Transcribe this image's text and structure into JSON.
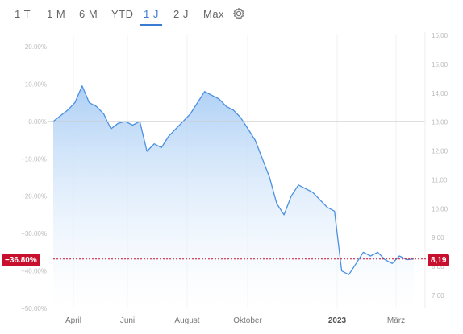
{
  "tabs": [
    {
      "label": "1 T",
      "active": false
    },
    {
      "label": "1 M",
      "active": false
    },
    {
      "label": "6 M",
      "active": false
    },
    {
      "label": "YTD",
      "active": false
    },
    {
      "label": "1 J",
      "active": true
    },
    {
      "label": "2 J",
      "active": false
    },
    {
      "label": "Max",
      "active": false
    }
  ],
  "settings_icon": "gear-icon",
  "colors": {
    "line": "#4a90e2",
    "fill_top": "#a9cdf5",
    "current": "#c8102e",
    "zero_line": "#cccccc"
  },
  "current_badges": {
    "left": "−36.80%",
    "right": "8,19"
  },
  "chart_data": {
    "type": "area",
    "x_ticks": [
      "April",
      "Juni",
      "August",
      "Oktober",
      "2023",
      "März"
    ],
    "bold_tick": "2023",
    "left_axis": {
      "format": "percent",
      "ticks": [
        "20.00%",
        "10.00%",
        "0.00%",
        "−10.00%",
        "−20.00%",
        "−30.00%",
        "−40.00%",
        "−50.00%"
      ],
      "range": [
        -50,
        20
      ]
    },
    "right_axis": {
      "format": "price",
      "ticks": [
        "16,00",
        "15,00",
        "14,00",
        "13,00",
        "12,00",
        "11,00",
        "10,00",
        "9,00",
        "8,00",
        "7,00"
      ],
      "range": [
        7,
        16
      ]
    },
    "series": [
      {
        "x": [
          0,
          1,
          2,
          3,
          4,
          5,
          6,
          7,
          8,
          9,
          10,
          11,
          12,
          13,
          14,
          15,
          16,
          17,
          18,
          19,
          20,
          21,
          22,
          23,
          24,
          25,
          26,
          27,
          28,
          29,
          30,
          31,
          32,
          33,
          34,
          35,
          36,
          37,
          38,
          39,
          40,
          41,
          42,
          43,
          44,
          45,
          46,
          47,
          48,
          49,
          50
        ],
        "pct": [
          0,
          1.5,
          3,
          5,
          9.5,
          5,
          4,
          2,
          -2,
          -0.5,
          0,
          -1,
          0,
          -8,
          -6,
          -7,
          -4,
          -2,
          0,
          2,
          5,
          8,
          7,
          6,
          4,
          3,
          1,
          -2,
          -5,
          -10,
          -15,
          -22,
          -25,
          -20,
          -17,
          -18,
          -19,
          -21,
          -23,
          -24,
          -40,
          -41,
          -38,
          -35,
          -36,
          -35,
          -37,
          -38,
          -36,
          -37,
          -36.8
        ]
      }
    ]
  }
}
